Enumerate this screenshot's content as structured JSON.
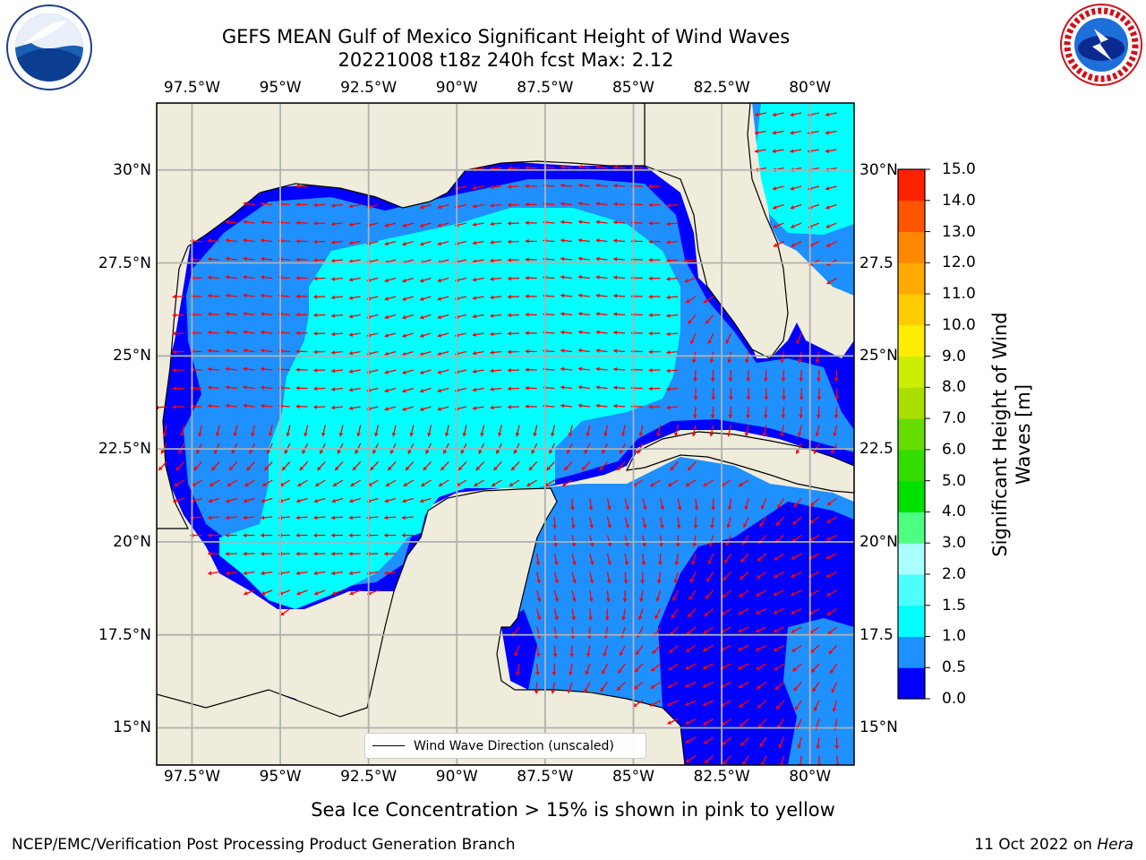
{
  "header": {
    "title": "GEFS MEAN Gulf of Mexico Significant Height of Wind Waves",
    "subtitle": "20221008 t18z 240h fcst   Max: 2.12"
  },
  "map": {
    "lon_range": [
      -98.5,
      -78.75
    ],
    "lat_range": [
      14.0,
      31.8
    ],
    "lon_ticks": [
      {
        "value": -97.5,
        "label": "97.5°W"
      },
      {
        "value": -95,
        "label": "95°W"
      },
      {
        "value": -92.5,
        "label": "92.5°W"
      },
      {
        "value": -90,
        "label": "90°W"
      },
      {
        "value": -87.5,
        "label": "87.5°W"
      },
      {
        "value": -85,
        "label": "85°W"
      },
      {
        "value": -82.5,
        "label": "82.5°W"
      },
      {
        "value": -80,
        "label": "80°W"
      }
    ],
    "lat_ticks": [
      {
        "value": 30,
        "label": "30°N"
      },
      {
        "value": 27.5,
        "label": "27.5°N"
      },
      {
        "value": 25,
        "label": "25°N"
      },
      {
        "value": 22.5,
        "label": "22.5°N"
      },
      {
        "value": 20,
        "label": "20°N"
      },
      {
        "value": 17.5,
        "label": "17.5°N"
      },
      {
        "value": 15,
        "label": "15°N"
      }
    ],
    "right_lat_labels": [
      "30°N",
      "27.5",
      "25°N",
      "22.5",
      "20°N",
      "17.5",
      "15°N"
    ],
    "colors": {
      "land": "#efecdc",
      "grid": "#b0b0b0",
      "arrow": "#ff0000",
      "coast": "#000000"
    },
    "legend_label": "Wind Wave Direction (unscaled)"
  },
  "colorbar": {
    "label": "Significant Height of Wind Waves [m]",
    "label_line1": "Significant Height of Wind",
    "label_line2": "Waves [m]",
    "ticks": [
      "0.0",
      "0.5",
      "1.0",
      "1.5",
      "2.0",
      "3.0",
      "4.0",
      "5.0",
      "6.0",
      "7.0",
      "8.0",
      "9.0",
      "10.0",
      "11.0",
      "12.0",
      "13.0",
      "14.0",
      "15.0"
    ],
    "colors": [
      "#0000ff",
      "#1e90ff",
      "#00ffff",
      "#4dffff",
      "#aaffff",
      "#4cff80",
      "#00e000",
      "#33dd00",
      "#66dd00",
      "#aadd00",
      "#ccee00",
      "#ffee00",
      "#ffcc00",
      "#ffaa00",
      "#ff8800",
      "#ff5500",
      "#ff2200"
    ]
  },
  "note": "Sea Ice Concentration > 15% is shown in pink to yellow",
  "footer": {
    "left": "NCEP/EMC/Verification Post Processing Product Generation Branch",
    "date": "11 Oct 2022 on ",
    "host": "Hera"
  }
}
